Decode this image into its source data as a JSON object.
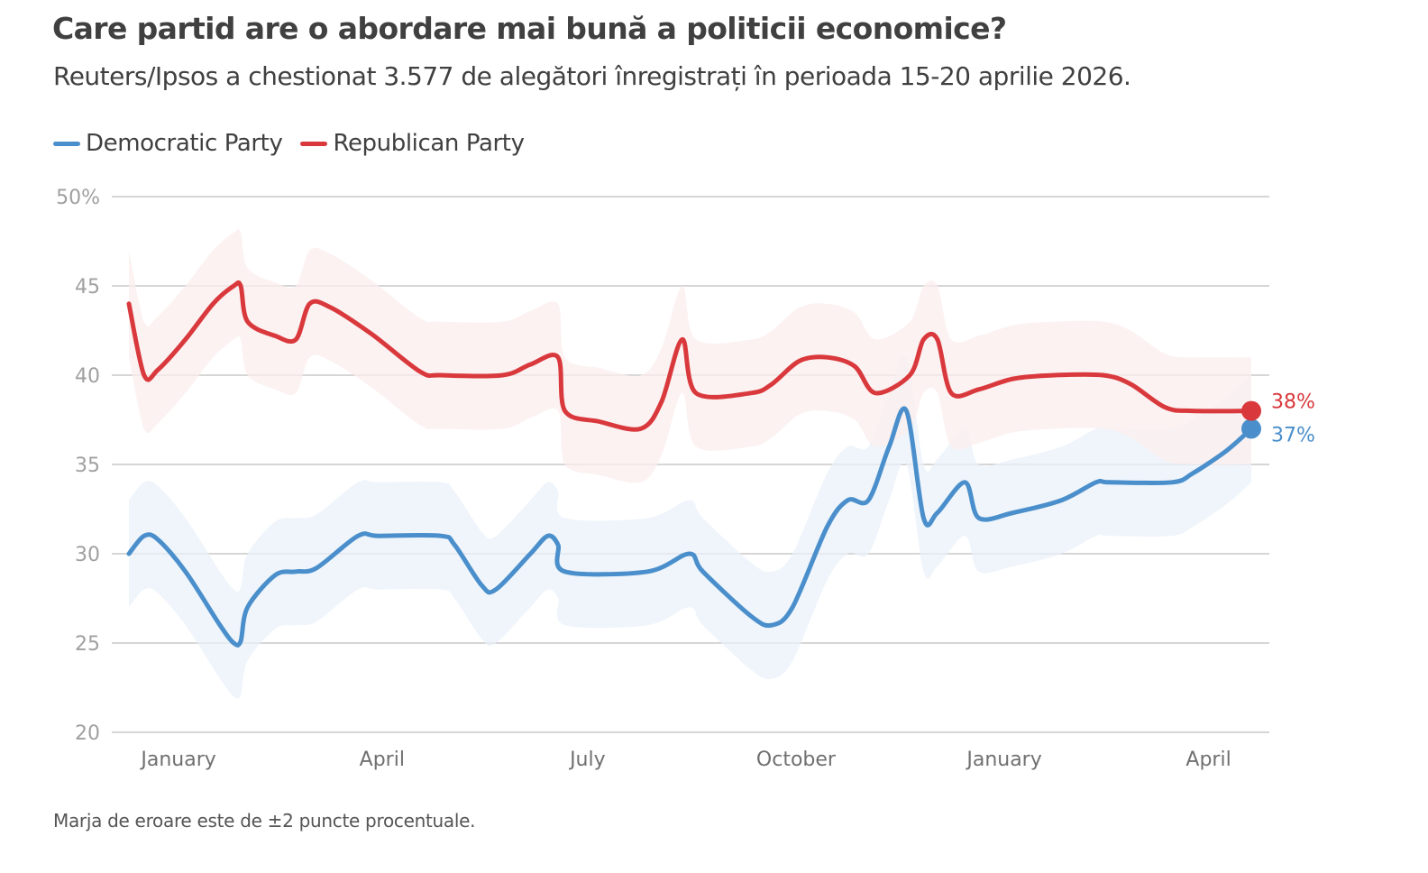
{
  "header": {
    "title": "Care partid are o abordare mai bună a politicii economice?",
    "subtitle": "Reuters/Ipsos a chestionat 3.577 de alegători înregistrați în perioada 15-20 aprilie 2026."
  },
  "legend": [
    {
      "label": "Democratic Party",
      "color": "#4a8fcb"
    },
    {
      "label": "Republican Party",
      "color": "#d9393c"
    }
  ],
  "footnote": "Marja de eroare este de ±2 puncte procentuale.",
  "chart_data": {
    "type": "line",
    "title": "Care partid are o abordare mai bună a politicii economice?",
    "xlabel": "",
    "ylabel": "",
    "x_unit": "months since Jan 1, 2025",
    "xlim": [
      -0.25,
      16.1
    ],
    "ylim": [
      20,
      50
    ],
    "y_ticks": [
      {
        "value": 50,
        "label": "50%"
      },
      {
        "value": 45,
        "label": "45"
      },
      {
        "value": 40,
        "label": "40"
      },
      {
        "value": 35,
        "label": "35"
      },
      {
        "value": 30,
        "label": "30"
      },
      {
        "value": 25,
        "label": "25"
      },
      {
        "value": 20,
        "label": "20"
      }
    ],
    "x_ticks": [
      {
        "value": 0.5,
        "label": "January"
      },
      {
        "value": 3.45,
        "label": "April"
      },
      {
        "value": 6.43,
        "label": "July"
      },
      {
        "value": 9.45,
        "label": "October"
      },
      {
        "value": 12.47,
        "label": "January"
      },
      {
        "value": 15.43,
        "label": "April"
      }
    ],
    "grid": true,
    "legend_position": "top-left",
    "margin_of_error": 2,
    "series": [
      {
        "name": "Democratic Party",
        "color": "#4a8fcb",
        "band_color": "#e9f1f9",
        "end_label": "37%",
        "points": [
          [
            -0.22,
            30
          ],
          [
            0.0,
            31
          ],
          [
            0.2,
            30.8
          ],
          [
            0.6,
            29
          ],
          [
            1.1,
            26
          ],
          [
            1.3,
            25
          ],
          [
            1.4,
            25.1
          ],
          [
            1.5,
            27
          ],
          [
            1.9,
            28.8
          ],
          [
            2.2,
            29
          ],
          [
            2.5,
            29.2
          ],
          [
            3.1,
            31
          ],
          [
            3.4,
            31
          ],
          [
            4.3,
            31
          ],
          [
            4.5,
            30.5
          ],
          [
            4.9,
            28.2
          ],
          [
            5.1,
            28
          ],
          [
            5.6,
            30
          ],
          [
            5.85,
            31
          ],
          [
            6.0,
            30.5
          ],
          [
            6.1,
            29
          ],
          [
            7.3,
            29
          ],
          [
            7.9,
            30
          ],
          [
            8.1,
            29
          ],
          [
            8.8,
            26.5
          ],
          [
            9.1,
            26
          ],
          [
            9.4,
            27
          ],
          [
            9.9,
            31.5
          ],
          [
            10.2,
            33
          ],
          [
            10.5,
            33
          ],
          [
            10.8,
            36
          ],
          [
            11.05,
            38
          ],
          [
            11.3,
            32
          ],
          [
            11.5,
            32.3
          ],
          [
            11.9,
            34
          ],
          [
            12.1,
            32
          ],
          [
            12.6,
            32.3
          ],
          [
            13.3,
            33
          ],
          [
            13.8,
            34
          ],
          [
            14.0,
            34
          ],
          [
            14.9,
            34
          ],
          [
            15.2,
            34.5
          ],
          [
            15.7,
            35.8
          ],
          [
            16.05,
            37
          ]
        ]
      },
      {
        "name": "Republican Party",
        "color": "#d9393c",
        "band_color": "#fbeeee",
        "end_label": "38%",
        "points": [
          [
            -0.22,
            44
          ],
          [
            0.0,
            40
          ],
          [
            0.2,
            40.3
          ],
          [
            0.6,
            42
          ],
          [
            1.0,
            44
          ],
          [
            1.3,
            45
          ],
          [
            1.4,
            45
          ],
          [
            1.5,
            43
          ],
          [
            1.9,
            42.2
          ],
          [
            2.2,
            42
          ],
          [
            2.4,
            44
          ],
          [
            2.7,
            43.8
          ],
          [
            3.3,
            42.3
          ],
          [
            4.0,
            40.2
          ],
          [
            4.3,
            40
          ],
          [
            5.2,
            40
          ],
          [
            5.6,
            40.6
          ],
          [
            6.0,
            41
          ],
          [
            6.1,
            38
          ],
          [
            6.6,
            37.4
          ],
          [
            7.2,
            37
          ],
          [
            7.5,
            38.5
          ],
          [
            7.8,
            42
          ],
          [
            8.0,
            39
          ],
          [
            8.8,
            39
          ],
          [
            9.1,
            39.5
          ],
          [
            9.5,
            40.8
          ],
          [
            9.9,
            41
          ],
          [
            10.3,
            40.5
          ],
          [
            10.6,
            39
          ],
          [
            11.1,
            40
          ],
          [
            11.3,
            42
          ],
          [
            11.5,
            42
          ],
          [
            11.7,
            39
          ],
          [
            12.1,
            39.2
          ],
          [
            12.6,
            39.8
          ],
          [
            13.2,
            40
          ],
          [
            13.9,
            40
          ],
          [
            14.3,
            39.5
          ],
          [
            14.8,
            38.2
          ],
          [
            15.2,
            38
          ],
          [
            16.05,
            38
          ]
        ]
      }
    ]
  }
}
